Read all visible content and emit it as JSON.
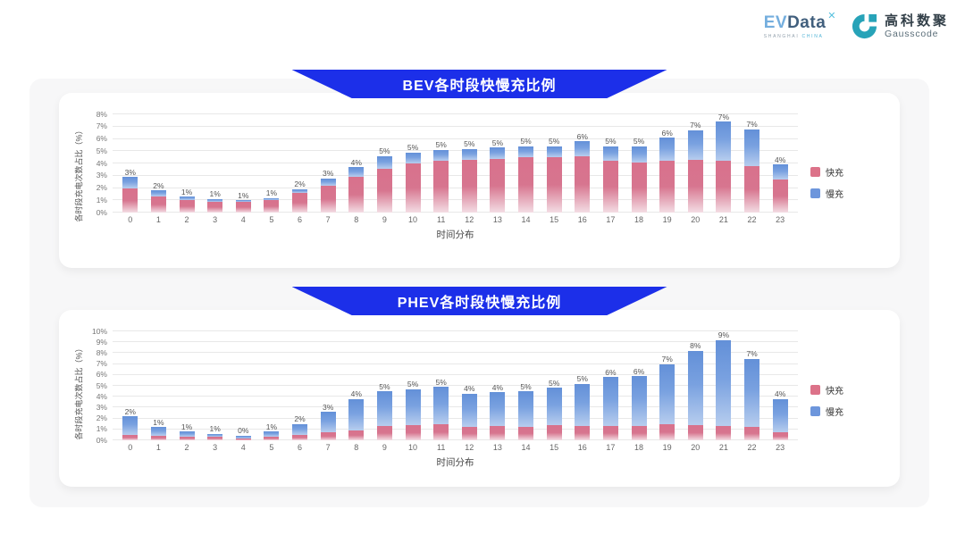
{
  "logo": {
    "evdata": {
      "prefix": "EV",
      "name": "Data",
      "mark": "✕",
      "tagline_left": "SHANGHAI",
      "tagline_right": "CHINA"
    },
    "gausscode": {
      "cn": "高科数聚",
      "en": "Gausscode"
    }
  },
  "colors": {
    "banner_blue": "#1c2fe9",
    "fast_pink": "#dc7289",
    "slow_blue": "#6d96dc",
    "panel_gray": "#f7f7f8",
    "gausscode_teal": "#27a3b8"
  },
  "chart_data": [
    {
      "type": "bar",
      "stacked": true,
      "title": "BEV各时段快慢充比例",
      "xlabel": "时间分布",
      "ylabel": "各时段充电次数占比（%）",
      "categories": [
        0,
        1,
        2,
        3,
        4,
        5,
        6,
        7,
        8,
        9,
        10,
        11,
        12,
        13,
        14,
        15,
        16,
        17,
        18,
        19,
        20,
        21,
        22,
        23
      ],
      "labels": [
        "3%",
        "2%",
        "1%",
        "1%",
        "1%",
        "1%",
        "2%",
        "3%",
        "4%",
        "5%",
        "5%",
        "5%",
        "5%",
        "5%",
        "5%",
        "5%",
        "6%",
        "5%",
        "5%",
        "6%",
        "7%",
        "7%",
        "7%",
        "4%"
      ],
      "series": [
        {
          "name": "快充",
          "color": "#dc7289",
          "values": [
            2.0,
            1.3,
            1.0,
            0.9,
            0.85,
            1.0,
            1.6,
            2.2,
            2.9,
            3.6,
            4.0,
            4.2,
            4.3,
            4.4,
            4.5,
            4.5,
            4.6,
            4.2,
            4.1,
            4.2,
            4.3,
            4.2,
            3.8,
            2.7
          ]
        },
        {
          "name": "慢充",
          "color": "#6d96dc",
          "values": [
            0.9,
            0.5,
            0.3,
            0.2,
            0.15,
            0.2,
            0.3,
            0.6,
            0.8,
            1.0,
            0.9,
            0.9,
            0.9,
            0.9,
            0.9,
            0.9,
            1.2,
            1.2,
            1.3,
            1.9,
            2.4,
            3.2,
            3.0,
            1.2
          ]
        }
      ],
      "ylim": [
        0,
        8
      ],
      "ytick_step": 1,
      "ytick_suffix": "%",
      "grid": true,
      "legend_position": "right"
    },
    {
      "type": "bar",
      "stacked": true,
      "title": "PHEV各时段快慢充比例",
      "xlabel": "时间分布",
      "ylabel": "各时段充电次数占比（%）",
      "categories": [
        0,
        1,
        2,
        3,
        4,
        5,
        6,
        7,
        8,
        9,
        10,
        11,
        12,
        13,
        14,
        15,
        16,
        17,
        18,
        19,
        20,
        21,
        22,
        23
      ],
      "labels": [
        "2%",
        "1%",
        "1%",
        "1%",
        "0%",
        "1%",
        "2%",
        "3%",
        "4%",
        "5%",
        "5%",
        "5%",
        "4%",
        "4%",
        "5%",
        "5%",
        "5%",
        "6%",
        "6%",
        "7%",
        "8%",
        "9%",
        "7%",
        "4%"
      ],
      "series": [
        {
          "name": "快充",
          "color": "#dc7289",
          "values": [
            0.5,
            0.4,
            0.3,
            0.3,
            0.2,
            0.3,
            0.5,
            0.7,
            0.9,
            1.3,
            1.4,
            1.5,
            1.2,
            1.3,
            1.2,
            1.4,
            1.3,
            1.3,
            1.3,
            1.5,
            1.4,
            1.3,
            1.2,
            0.7
          ]
        },
        {
          "name": "慢充",
          "color": "#6d96dc",
          "values": [
            1.7,
            0.8,
            0.5,
            0.3,
            0.25,
            0.5,
            1.0,
            1.9,
            2.9,
            3.2,
            3.3,
            3.4,
            3.1,
            3.1,
            3.3,
            3.4,
            3.9,
            4.5,
            4.6,
            5.5,
            6.8,
            7.9,
            6.3,
            3.1
          ]
        }
      ],
      "ylim": [
        0,
        10
      ],
      "ytick_step": 1,
      "ytick_suffix": "%",
      "grid": true,
      "legend_position": "right"
    }
  ]
}
